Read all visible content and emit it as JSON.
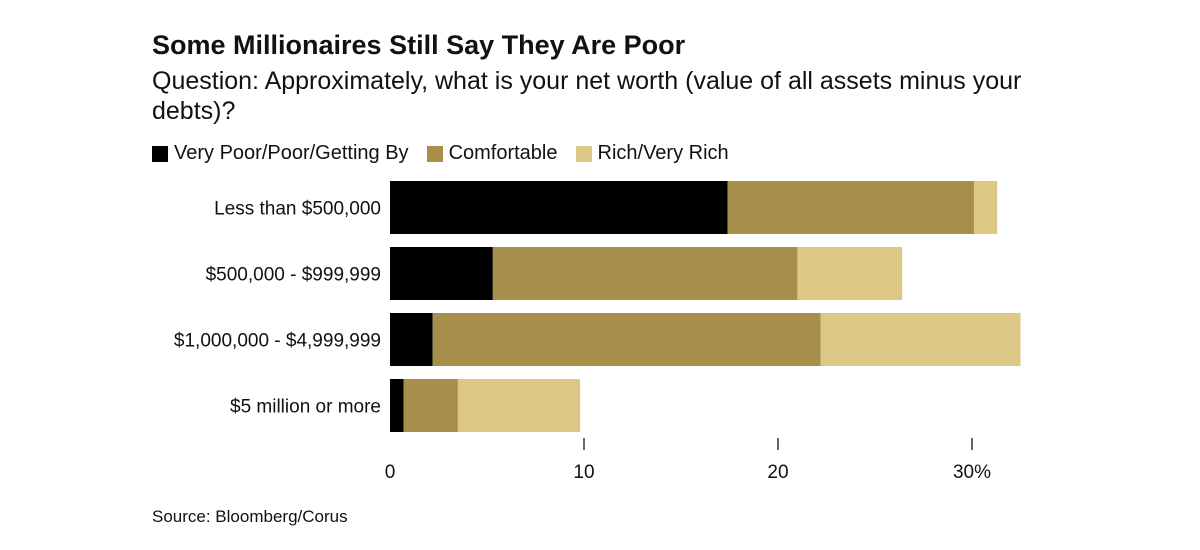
{
  "title": "Some Millionaires Still Say They Are Poor",
  "subtitle": "Question: Approximately, what is your net worth (value of all assets minus your debts)?",
  "source": "Source: Bloomberg/Corus",
  "colors": {
    "poor": "#000000",
    "comfortable": "#a78f4b",
    "rich": "#dcc785"
  },
  "chart_data": {
    "type": "bar",
    "orientation": "horizontal",
    "stacked": true,
    "categories": [
      "Less than $500,000",
      "$500,000 - $999,999",
      "$1,000,000 - $4,999,999",
      "$5 million or more"
    ],
    "series": [
      {
        "name": "Very Poor/Poor/Getting By",
        "color": "#000000",
        "values": [
          17.4,
          5.3,
          2.2,
          0.7
        ]
      },
      {
        "name": "Comfortable",
        "color": "#a78f4b",
        "values": [
          12.7,
          15.7,
          20.0,
          2.8
        ]
      },
      {
        "name": "Rich/Very Rich",
        "color": "#dcc785",
        "values": [
          1.2,
          5.4,
          10.3,
          6.3
        ]
      }
    ],
    "xlim": [
      0,
      33
    ],
    "xticks": [
      0,
      10,
      20,
      30
    ],
    "xtick_labels": [
      "0",
      "10",
      "20",
      "30%"
    ],
    "legend_position": "top-left",
    "grid": false
  }
}
